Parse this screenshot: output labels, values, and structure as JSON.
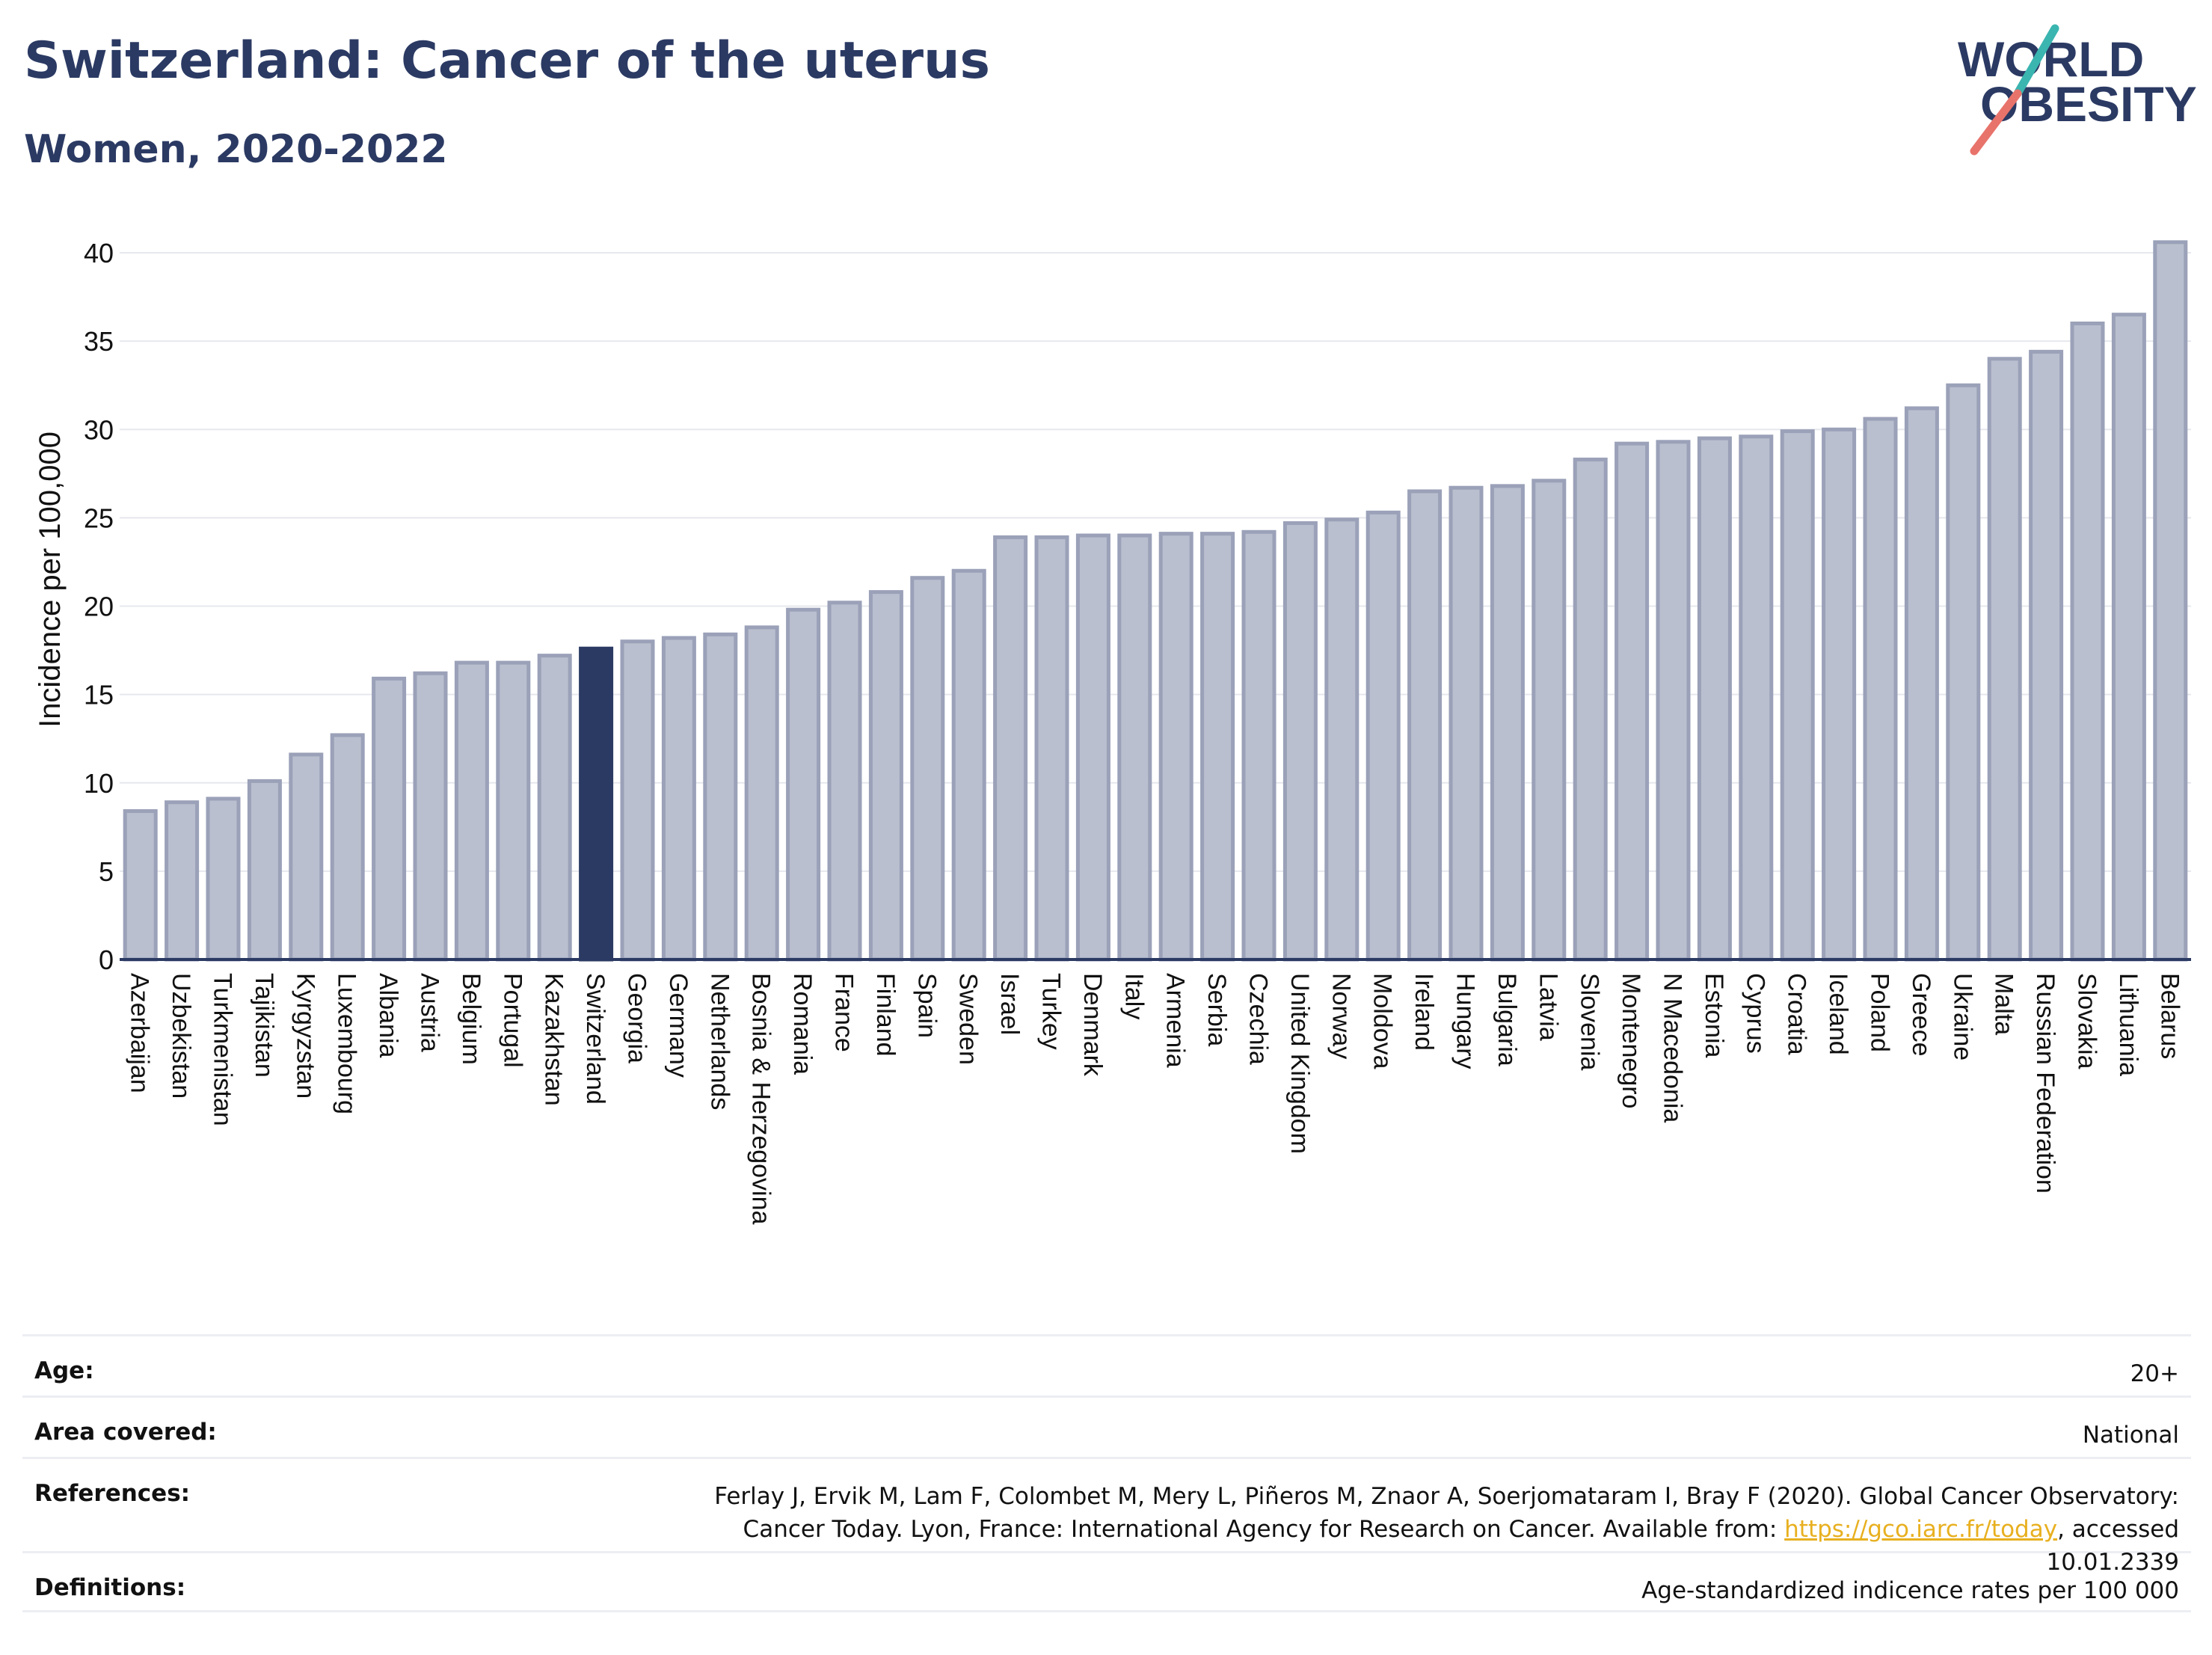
{
  "header": {
    "title": "Switzerland: Cancer of the uterus",
    "subtitle": "Women, 2020-2022"
  },
  "logo": {
    "line1": "WORLD",
    "line2": "OBESITY",
    "colors": {
      "text": "#2b3a63",
      "slash_top": "#3ab5b0",
      "slash_bottom": "#e8736b"
    }
  },
  "colors": {
    "bar_default": "#b9bfce",
    "bar_default_stroke": "#9aa1b8",
    "bar_highlight": "#2b3a63",
    "gridline": "#e6e8ee",
    "axis": "#2b3a63",
    "link": "#e8b020"
  },
  "chart_data": {
    "type": "bar",
    "ylabel": "Incidence per 100,000",
    "xlabel": "",
    "ylim": [
      0,
      42
    ],
    "yticks": [
      0,
      5,
      10,
      15,
      20,
      25,
      30,
      35,
      40
    ],
    "grid": true,
    "highlight": "Switzerland",
    "categories": [
      "Azerbaijan",
      "Uzbekistan",
      "Turkmenistan",
      "Tajikistan",
      "Kyrgyzstan",
      "Luxembourg",
      "Albania",
      "Austria",
      "Belgium",
      "Portugal",
      "Kazakhstan",
      "Switzerland",
      "Georgia",
      "Germany",
      "Netherlands",
      "Bosnia & Herzegovina",
      "Romania",
      "France",
      "Finland",
      "Spain",
      "Sweden",
      "Israel",
      "Turkey",
      "Denmark",
      "Italy",
      "Armenia",
      "Serbia",
      "Czechia",
      "United Kingdom",
      "Norway",
      "Moldova",
      "Ireland",
      "Hungary",
      "Bulgaria",
      "Latvia",
      "Slovenia",
      "Montenegro",
      "N Macedonia",
      "Estonia",
      "Cyprus",
      "Croatia",
      "Iceland",
      "Poland",
      "Greece",
      "Ukraine",
      "Malta",
      "Russian Federation",
      "Slovakia",
      "Lithuania",
      "Belarus"
    ],
    "values": [
      8.4,
      8.9,
      9.1,
      10.1,
      11.6,
      12.7,
      15.9,
      16.2,
      16.8,
      16.8,
      17.2,
      17.6,
      18.0,
      18.2,
      18.4,
      18.8,
      19.8,
      20.2,
      20.8,
      21.6,
      22.0,
      23.9,
      23.9,
      24.0,
      24.0,
      24.1,
      24.1,
      24.2,
      24.7,
      24.9,
      25.3,
      26.5,
      26.7,
      26.8,
      27.1,
      28.3,
      29.2,
      29.3,
      29.5,
      29.6,
      29.9,
      30.0,
      30.6,
      31.2,
      32.5,
      34.0,
      34.4,
      36.0,
      36.5,
      40.6
    ]
  },
  "meta": [
    {
      "label": "Age:",
      "value": "20+"
    },
    {
      "label": "Area covered:",
      "value": "National"
    },
    {
      "label": "References:",
      "value_before": "Ferlay J, Ervik M, Lam F, Colombet M, Mery L, Piñeros M, Znaor A, Soerjomataram I, Bray F (2020). Global Cancer Observatory: Cancer Today. Lyon, France: International Agency for Research on Cancer. Available from: ",
      "link": "https://gco.iarc.fr/today",
      "value_after": ", accessed 10.01.2339"
    },
    {
      "label": "Definitions:",
      "value": "Age-standardized indicence rates per 100 000"
    }
  ]
}
